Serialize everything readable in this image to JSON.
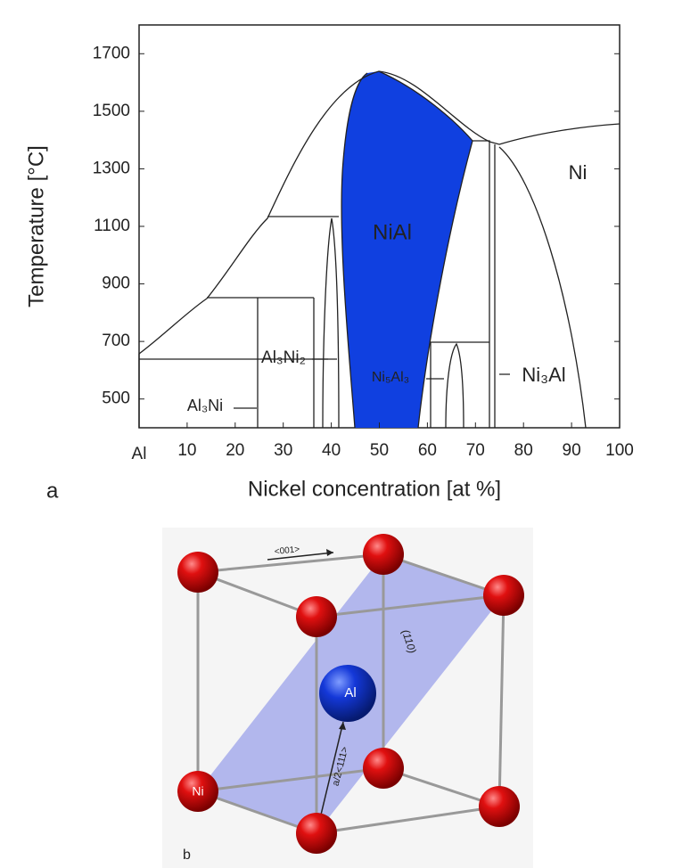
{
  "panel_a": {
    "label": "a",
    "y_axis_title": "Temperature [°C]",
    "x_axis_title": "Nickel concentration [at %]",
    "xlim": [
      0,
      100
    ],
    "ylim": [
      400,
      1800
    ],
    "xticks": [
      {
        "value": 0,
        "label": "Al"
      },
      10,
      20,
      30,
      40,
      50,
      60,
      70,
      80,
      90,
      100
    ],
    "yticks": [
      500,
      700,
      900,
      1100,
      1300,
      1500,
      1700
    ],
    "regions": [
      "NiAl",
      "Ni",
      "Al₃Ni₂",
      "Ni₅Al₃",
      "Ni₃Al",
      "Al₃Ni"
    ]
  },
  "panel_b": {
    "label": "b",
    "direction": "<001>",
    "plane": "(110)",
    "atom_center": "Al",
    "atom_corner": "Ni",
    "vector": "a/2<111>"
  }
}
